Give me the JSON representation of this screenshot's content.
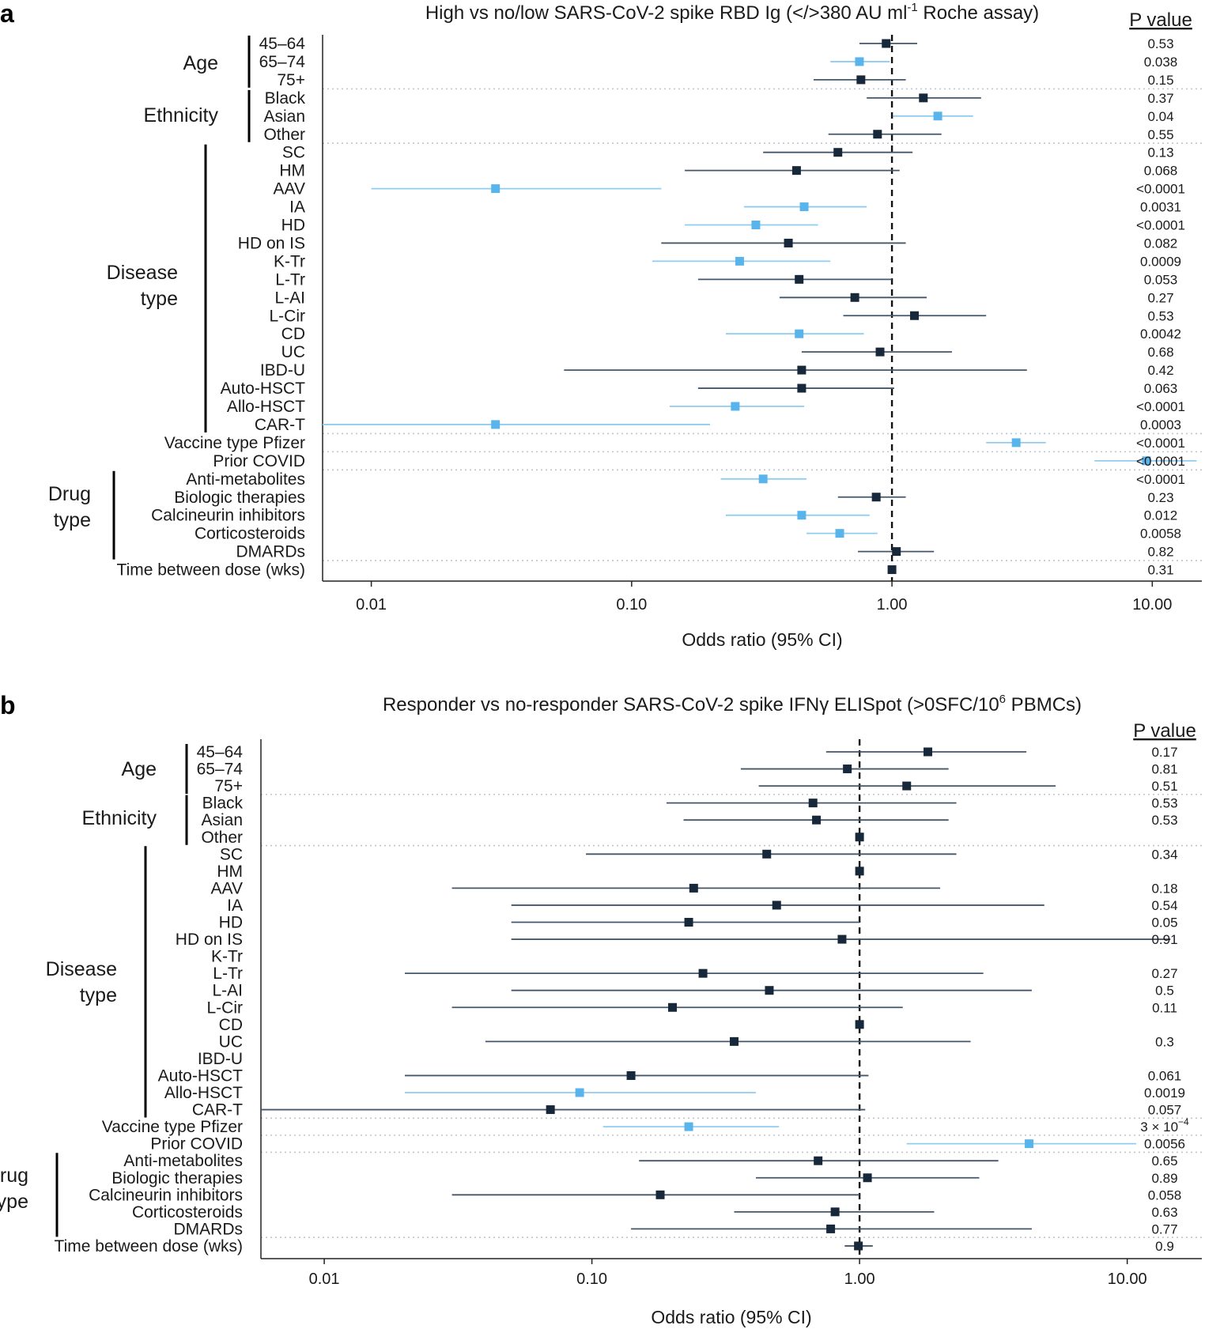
{
  "colors": {
    "significant": "#5AB4EC",
    "significant_ci": "#8FCDF0",
    "nonsignificant": "#16283A",
    "nonsignificant_ci": "#44566A",
    "reference": "#111111",
    "separator": "#bfc5ca"
  },
  "chart_data": [
    {
      "type": "forest",
      "panel_label": "a",
      "title_main": "High vs no/low SARS-CoV-2 spike RBD Ig (</>380 AU ml",
      "title_sup": "-1",
      "title_tail": " Roche assay)",
      "pvalue_header": "P value",
      "xlabel": "Odds ratio (95% CI)",
      "xscale": "log",
      "xlim": [
        0.0065,
        15.5
      ],
      "xticks": [
        0.01,
        0.1,
        1.0,
        10.0
      ],
      "xtick_labels": [
        "0.01",
        "0.10",
        "1.00",
        "10.00"
      ],
      "reference_line": 1.0,
      "groups": [
        {
          "label": [
            "Age"
          ],
          "rows": [
            0,
            2
          ]
        },
        {
          "label": [
            "Ethnicity"
          ],
          "rows": [
            3,
            5
          ]
        },
        {
          "label": [
            "Disease",
            "type"
          ],
          "rows": [
            6,
            21
          ]
        },
        {
          "label": [
            "Drug",
            "type"
          ],
          "rows": [
            24,
            28
          ]
        }
      ],
      "separators_after": [
        2,
        5,
        21,
        22,
        23,
        28
      ],
      "rows": [
        {
          "label": "45–64",
          "or": 0.95,
          "lo": 0.75,
          "hi": 1.25,
          "p": "0.53",
          "sig": false
        },
        {
          "label": "65–74",
          "or": 0.75,
          "lo": 0.58,
          "hi": 0.98,
          "p": "0.038",
          "sig": true
        },
        {
          "label": "75+",
          "or": 0.76,
          "lo": 0.5,
          "hi": 1.13,
          "p": "0.15",
          "sig": false
        },
        {
          "label": "Black",
          "or": 1.32,
          "lo": 0.8,
          "hi": 2.2,
          "p": "0.37",
          "sig": false
        },
        {
          "label": "Asian",
          "or": 1.5,
          "lo": 1.01,
          "hi": 2.05,
          "p": "0.04",
          "sig": true
        },
        {
          "label": "Other",
          "or": 0.88,
          "lo": 0.57,
          "hi": 1.55,
          "p": "0.55",
          "sig": false
        },
        {
          "label": "SC",
          "or": 0.62,
          "lo": 0.32,
          "hi": 1.2,
          "p": "0.13",
          "sig": false
        },
        {
          "label": "HM",
          "or": 0.43,
          "lo": 0.16,
          "hi": 1.07,
          "p": "0.068",
          "sig": false
        },
        {
          "label": "AAV",
          "or": 0.03,
          "lo": 0.01,
          "hi": 0.13,
          "p": "<0.0001",
          "sig": true
        },
        {
          "label": "IA",
          "or": 0.46,
          "lo": 0.27,
          "hi": 0.8,
          "p": "0.0031",
          "sig": true
        },
        {
          "label": "HD",
          "or": 0.3,
          "lo": 0.16,
          "hi": 0.52,
          "p": "<0.0001",
          "sig": true
        },
        {
          "label": "HD on IS",
          "or": 0.4,
          "lo": 0.13,
          "hi": 1.13,
          "p": "0.082",
          "sig": false
        },
        {
          "label": "K-Tr",
          "or": 0.26,
          "lo": 0.12,
          "hi": 0.58,
          "p": "0.0009",
          "sig": true
        },
        {
          "label": "L-Tr",
          "or": 0.44,
          "lo": 0.18,
          "hi": 1.0,
          "p": "0.053",
          "sig": false
        },
        {
          "label": "L-AI",
          "or": 0.72,
          "lo": 0.37,
          "hi": 1.36,
          "p": "0.27",
          "sig": false
        },
        {
          "label": "L-Cir",
          "or": 1.22,
          "lo": 0.65,
          "hi": 2.3,
          "p": "0.53",
          "sig": false
        },
        {
          "label": "CD",
          "or": 0.44,
          "lo": 0.23,
          "hi": 0.78,
          "p": "0.0042",
          "sig": true
        },
        {
          "label": "UC",
          "or": 0.9,
          "lo": 0.45,
          "hi": 1.7,
          "p": "0.68",
          "sig": false
        },
        {
          "label": "IBD-U",
          "or": 0.45,
          "lo": 0.055,
          "hi": 3.3,
          "p": "0.42",
          "sig": false
        },
        {
          "label": "Auto-HSCT",
          "or": 0.45,
          "lo": 0.18,
          "hi": 1.02,
          "p": "0.063",
          "sig": false
        },
        {
          "label": "Allo-HSCT",
          "or": 0.25,
          "lo": 0.14,
          "hi": 0.46,
          "p": "<0.0001",
          "sig": true
        },
        {
          "label": "CAR-T",
          "or": 0.03,
          "lo": 0.0065,
          "hi": 0.2,
          "p": "0.0003",
          "sig": true
        },
        {
          "label": "Vaccine type Pfizer",
          "or": 3.0,
          "lo": 2.3,
          "hi": 3.9,
          "p": "<0.0001",
          "sig": true
        },
        {
          "label": "Prior COVID",
          "or": 9.5,
          "lo": 6.0,
          "hi": 14.8,
          "p": "<0.0001",
          "sig": true
        },
        {
          "label": "Anti-metabolites",
          "or": 0.32,
          "lo": 0.22,
          "hi": 0.47,
          "p": "<0.0001",
          "sig": true
        },
        {
          "label": "Biologic therapies",
          "or": 0.87,
          "lo": 0.62,
          "hi": 1.13,
          "p": "0.23",
          "sig": false
        },
        {
          "label": "Calcineurin inhibitors",
          "or": 0.45,
          "lo": 0.23,
          "hi": 0.82,
          "p": "0.012",
          "sig": true
        },
        {
          "label": "Corticosteroids",
          "or": 0.63,
          "lo": 0.47,
          "hi": 0.88,
          "p": "0.0058",
          "sig": true
        },
        {
          "label": "DMARDs",
          "or": 1.04,
          "lo": 0.74,
          "hi": 1.45,
          "p": "0.82",
          "sig": false
        },
        {
          "label": "Time between dose (wks)",
          "or": 1.0,
          "lo": 0.99,
          "hi": 1.01,
          "p": "0.31",
          "sig": false
        }
      ]
    },
    {
      "type": "forest",
      "panel_label": "b",
      "title_main": "Responder vs no-responder SARS-CoV-2 spike IFNγ ELISpot (>0SFC/10",
      "title_sup": "6",
      "title_tail": " PBMCs)",
      "pvalue_header": "P value",
      "xlabel": "Odds ratio (95% CI)",
      "xscale": "log",
      "xlim": [
        0.0058,
        19.0
      ],
      "xticks": [
        0.01,
        0.1,
        1.0,
        10.0
      ],
      "xtick_labels": [
        "0.01",
        "0.10",
        "1.00",
        "10.00"
      ],
      "reference_line": 1.0,
      "groups": [
        {
          "label": [
            "Age"
          ],
          "rows": [
            0,
            2
          ]
        },
        {
          "label": [
            "Ethnicity"
          ],
          "rows": [
            3,
            5
          ]
        },
        {
          "label": [
            "Disease",
            "type"
          ],
          "rows": [
            6,
            21
          ]
        },
        {
          "label": [
            "Drug",
            "type"
          ],
          "rows": [
            24,
            28
          ]
        }
      ],
      "separators_after": [
        2,
        5,
        21,
        22,
        23,
        28
      ],
      "rows": [
        {
          "label": "45–64",
          "or": 1.8,
          "lo": 0.75,
          "hi": 4.2,
          "p": "0.17",
          "sig": false
        },
        {
          "label": "65–74",
          "or": 0.9,
          "lo": 0.36,
          "hi": 2.15,
          "p": "0.81",
          "sig": false
        },
        {
          "label": "75+",
          "or": 1.5,
          "lo": 0.42,
          "hi": 5.4,
          "p": "0.51",
          "sig": false
        },
        {
          "label": "Black",
          "or": 0.67,
          "lo": 0.19,
          "hi": 2.3,
          "p": "0.53",
          "sig": false
        },
        {
          "label": "Asian",
          "or": 0.69,
          "lo": 0.22,
          "hi": 2.15,
          "p": "0.53",
          "sig": false
        },
        {
          "label": "Other",
          "or": 1.0,
          "lo": 1.0,
          "hi": 1.0,
          "p": "",
          "sig": false
        },
        {
          "label": "SC",
          "or": 0.45,
          "lo": 0.095,
          "hi": 2.3,
          "p": "0.34",
          "sig": false
        },
        {
          "label": "HM",
          "or": 1.0,
          "lo": 1.0,
          "hi": 1.0,
          "p": "",
          "sig": false
        },
        {
          "label": "AAV",
          "or": 0.24,
          "lo": 0.03,
          "hi": 2.0,
          "p": "0.18",
          "sig": false
        },
        {
          "label": "IA",
          "or": 0.49,
          "lo": 0.05,
          "hi": 4.9,
          "p": "0.54",
          "sig": false
        },
        {
          "label": "HD",
          "or": 0.23,
          "lo": 0.05,
          "hi": 1.0,
          "p": "0.05",
          "sig": false
        },
        {
          "label": "HD on IS",
          "or": 0.86,
          "lo": 0.05,
          "hi": 14.5,
          "p": "0.91",
          "sig": false
        },
        {
          "label": "K-Tr",
          "or": null,
          "lo": null,
          "hi": null,
          "p": "",
          "sig": false
        },
        {
          "label": "L-Tr",
          "or": 0.26,
          "lo": 0.02,
          "hi": 2.9,
          "p": "0.27",
          "sig": false
        },
        {
          "label": "L-AI",
          "or": 0.46,
          "lo": 0.05,
          "hi": 4.4,
          "p": "0.5",
          "sig": false
        },
        {
          "label": "L-Cir",
          "or": 0.2,
          "lo": 0.03,
          "hi": 1.45,
          "p": "0.11",
          "sig": false
        },
        {
          "label": "CD",
          "or": 1.0,
          "lo": 1.0,
          "hi": 1.0,
          "p": "",
          "sig": false
        },
        {
          "label": "UC",
          "or": 0.34,
          "lo": 0.04,
          "hi": 2.6,
          "p": "0.3",
          "sig": false
        },
        {
          "label": "IBD-U",
          "or": null,
          "lo": null,
          "hi": null,
          "p": "",
          "sig": false
        },
        {
          "label": "Auto-HSCT",
          "or": 0.14,
          "lo": 0.02,
          "hi": 1.08,
          "p": "0.061",
          "sig": false
        },
        {
          "label": "Allo-HSCT",
          "or": 0.09,
          "lo": 0.02,
          "hi": 0.41,
          "p": "0.0019",
          "sig": true
        },
        {
          "label": "CAR-T",
          "or": 0.07,
          "lo": 0.0058,
          "hi": 1.05,
          "p": "0.057",
          "sig": false
        },
        {
          "label": "Vaccine type Pfizer",
          "or": 0.23,
          "lo": 0.11,
          "hi": 0.5,
          "p": "3 × 10",
          "p_sup": "−4",
          "sig": true
        },
        {
          "label": "Prior COVID",
          "or": 4.3,
          "lo": 1.5,
          "hi": 10.8,
          "p": "0.0056",
          "sig": true
        },
        {
          "label": "Anti-metabolites",
          "or": 0.7,
          "lo": 0.15,
          "hi": 3.3,
          "p": "0.65",
          "sig": false
        },
        {
          "label": "Biologic therapies",
          "or": 1.07,
          "lo": 0.41,
          "hi": 2.8,
          "p": "0.89",
          "sig": false
        },
        {
          "label": "Calcineurin inhibitors",
          "or": 0.18,
          "lo": 0.03,
          "hi": 1.0,
          "p": "0.058",
          "sig": false
        },
        {
          "label": "Corticosteroids",
          "or": 0.81,
          "lo": 0.34,
          "hi": 1.9,
          "p": "0.63",
          "sig": false
        },
        {
          "label": "DMARDs",
          "or": 0.78,
          "lo": 0.14,
          "hi": 4.4,
          "p": "0.77",
          "sig": false
        },
        {
          "label": "Time between dose (wks)",
          "or": 0.99,
          "lo": 0.88,
          "hi": 1.12,
          "p": "0.9",
          "sig": false
        }
      ]
    }
  ]
}
